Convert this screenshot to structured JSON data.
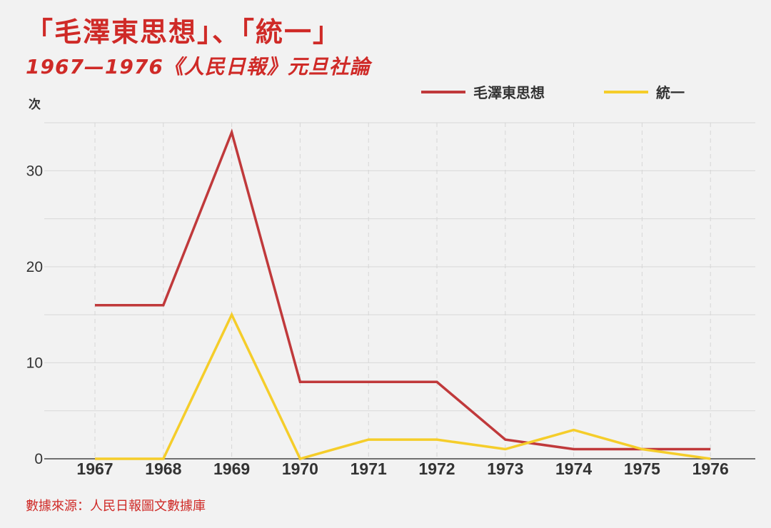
{
  "header": {
    "title": "「毛澤東思想」、「統一」",
    "subtitle": "1967—1976《人民日報》元旦社論"
  },
  "footer": {
    "source": "數據來源：人民日報圖文數據庫"
  },
  "chart_data": {
    "type": "line",
    "x": [
      "1967",
      "1968",
      "1969",
      "1970",
      "1971",
      "1972",
      "1973",
      "1974",
      "1975",
      "1976"
    ],
    "ylabel": "次",
    "ylim": [
      0,
      35
    ],
    "yticks": [
      0,
      10,
      20,
      30
    ],
    "grid": true,
    "legend_position": "top-right",
    "series": [
      {
        "name": "毛澤東思想",
        "color": "#c0393b",
        "values": [
          16,
          16,
          34,
          8,
          8,
          8,
          2,
          1,
          1,
          1
        ]
      },
      {
        "name": "統一",
        "color": "#f5cd2a",
        "values": [
          0,
          0,
          15,
          0,
          2,
          2,
          1,
          3,
          1,
          0
        ]
      }
    ]
  }
}
